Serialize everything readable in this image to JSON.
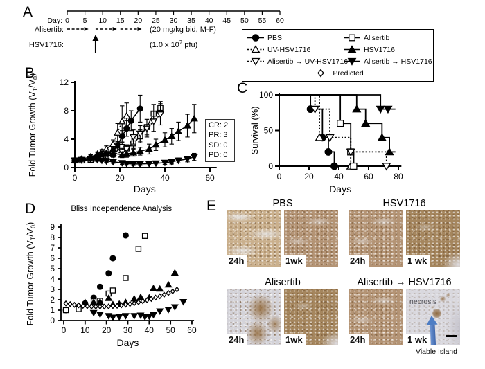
{
  "panels": {
    "A": "A",
    "B": "B",
    "C": "C",
    "D": "D",
    "E": "E"
  },
  "colors": {
    "black": "#000000",
    "stain_brown": "#a5865e",
    "pale_tissue": "#d9d8de",
    "arrow_blue": "#4d7dc4"
  },
  "timeline": {
    "day_prefix": "Day:",
    "tick_days": [
      0,
      5,
      10,
      15,
      20,
      25,
      30,
      35,
      40,
      45,
      50,
      55,
      60
    ],
    "day_min": 0,
    "day_max": 60,
    "alisertib_label": "Alisertib:",
    "alisertib_note": "(20 mg/kg bid, M-F)",
    "alisertib_courses": [
      [
        0,
        6
      ],
      [
        8,
        14
      ],
      [
        15,
        21
      ]
    ],
    "hsv_label": "HSV1716:",
    "hsv_note": "(1.0 x 10^7^ pfu)",
    "hsv_day": 8
  },
  "legend": {
    "items": [
      {
        "label": "PBS",
        "marker": "circle-filled",
        "line": "solid"
      },
      {
        "label": "Alisertib",
        "marker": "square-open",
        "line": "solid"
      },
      {
        "label": "UV-HSV1716",
        "marker": "tri-up-open",
        "line": "dotted"
      },
      {
        "label": "HSV1716",
        "marker": "tri-up-filled",
        "line": "solid"
      },
      {
        "label": "Alisertib → UV-HSV1716",
        "marker": "tri-down-open",
        "line": "dotted"
      },
      {
        "label": "Alisertib → HSV1716",
        "marker": "tri-down-filled",
        "line": "solid"
      },
      {
        "label": "Predicted",
        "marker": "diamond-open",
        "line": "none"
      }
    ]
  },
  "response_box": {
    "lines": [
      "CR: 2",
      "PR: 3",
      "SD: 0",
      "PD: 0"
    ]
  },
  "chart_data": [
    {
      "panel": "B",
      "type": "line",
      "xlabel": "Days",
      "ylabel": "Fold Tumor Growth (V_T_/V_0_)",
      "xlim": [
        0,
        62
      ],
      "ylim": [
        0,
        12
      ],
      "xticks": [
        0,
        20,
        40,
        60
      ],
      "yticks": [
        0,
        4,
        8,
        12
      ],
      "series": [
        {
          "name": "PBS",
          "marker": "circle-filled",
          "line": "solid",
          "x": [
            0,
            3,
            7,
            10,
            12,
            14,
            17,
            19,
            21,
            23,
            25,
            29
          ],
          "y": [
            1,
            1.1,
            1.3,
            1.5,
            1.7,
            1.9,
            2.3,
            3.1,
            4.4,
            5.5,
            6.6,
            8.3
          ],
          "err": [
            0.1,
            0.15,
            0.2,
            0.25,
            0.3,
            0.35,
            0.5,
            0.6,
            0.8,
            1.1,
            1.4,
            1.9
          ]
        },
        {
          "name": "UV-HSV1716",
          "marker": "tri-up-open",
          "line": "dotted",
          "x": [
            0,
            3,
            7,
            10,
            12,
            14,
            17,
            19,
            21,
            23
          ],
          "y": [
            1,
            1.15,
            1.5,
            1.9,
            2.2,
            2.6,
            3.3,
            4.9,
            6.5,
            7.3
          ],
          "err": [
            0.1,
            0.15,
            0.25,
            0.3,
            0.35,
            0.45,
            0.6,
            1.3,
            2.2,
            1.8
          ]
        },
        {
          "name": "Alisertib",
          "marker": "square-open",
          "line": "solid",
          "x": [
            0,
            3,
            7,
            10,
            12,
            14,
            17,
            21,
            23,
            26,
            29,
            32,
            35,
            38
          ],
          "y": [
            1,
            1.0,
            1.1,
            1.25,
            1.4,
            1.55,
            1.9,
            2.9,
            2.7,
            3.4,
            4.4,
            5.7,
            7.6,
            8.4
          ],
          "err": [
            0.08,
            0.1,
            0.15,
            0.2,
            0.25,
            0.3,
            0.4,
            0.6,
            0.5,
            0.7,
            0.9,
            1.1,
            1.3,
            0.9
          ]
        },
        {
          "name": "Alisertib → UV-HSV1716",
          "marker": "tri-down-open",
          "line": "dotted",
          "x": [
            0,
            3,
            7,
            10,
            12,
            14,
            17,
            21,
            23,
            26,
            29,
            32,
            35,
            38
          ],
          "y": [
            1,
            1.05,
            1.2,
            1.35,
            1.5,
            1.65,
            1.85,
            2.2,
            2.6,
            4.3,
            4.8,
            5.5,
            6.5,
            7.5
          ],
          "err": [
            0.08,
            0.1,
            0.15,
            0.2,
            0.25,
            0.3,
            0.4,
            0.5,
            0.6,
            1.0,
            1.1,
            1.2,
            1.4,
            1.5
          ]
        },
        {
          "name": "HSV1716",
          "marker": "tri-up-filled",
          "line": "solid",
          "x": [
            0,
            3,
            7,
            10,
            12,
            14,
            17,
            21,
            23,
            26,
            29,
            33,
            36,
            40,
            43,
            46,
            50,
            53
          ],
          "y": [
            1,
            1.2,
            1.5,
            1.8,
            1.9,
            2.0,
            2.0,
            1.8,
            1.9,
            2.1,
            2.3,
            2.6,
            3.2,
            3.9,
            4.4,
            5.1,
            5.9,
            6.9
          ],
          "err": [
            0.1,
            0.2,
            0.3,
            0.35,
            0.4,
            0.45,
            0.5,
            0.4,
            0.45,
            0.5,
            0.55,
            0.7,
            0.8,
            1.0,
            1.1,
            1.3,
            1.6,
            2.0
          ]
        },
        {
          "name": "Alisertib → HSV1716",
          "marker": "tri-down-filled",
          "line": "solid",
          "x": [
            0,
            3,
            7,
            10,
            12,
            14,
            17,
            21,
            23,
            26,
            29,
            33,
            36,
            40,
            43,
            46,
            50,
            53
          ],
          "y": [
            1,
            1.1,
            1.2,
            1.1,
            1.0,
            0.9,
            0.8,
            0.65,
            0.55,
            0.5,
            0.5,
            0.55,
            0.6,
            0.7,
            0.8,
            1.0,
            1.2,
            1.5
          ],
          "err": [
            0.08,
            0.1,
            0.15,
            0.15,
            0.15,
            0.15,
            0.2,
            0.2,
            0.2,
            0.2,
            0.2,
            0.2,
            0.25,
            0.25,
            0.3,
            0.35,
            0.4,
            0.5
          ]
        }
      ]
    },
    {
      "panel": "C",
      "type": "km",
      "xlabel": "Days",
      "ylabel": "Survival (%)",
      "xlim": [
        0,
        82
      ],
      "ylim": [
        0,
        100
      ],
      "xticks": [
        0,
        20,
        40,
        60,
        80
      ],
      "yticks": [
        0,
        50,
        100
      ],
      "series": [
        {
          "name": "PBS",
          "marker": "circle-filled",
          "line": "solid",
          "steps": [
            [
              21,
              80
            ],
            [
              29,
              40
            ],
            [
              33,
              20
            ],
            [
              37,
              0
            ]
          ]
        },
        {
          "name": "UV-HSV1716",
          "marker": "tri-up-open",
          "line": "dotted",
          "steps": [
            [
              27,
              40
            ],
            [
              48,
              0
            ]
          ]
        },
        {
          "name": "Alisertib",
          "marker": "square-open",
          "line": "solid",
          "steps": [
            [
              41,
              60
            ],
            [
              48,
              20
            ],
            [
              50,
              0
            ]
          ]
        },
        {
          "name": "Alisertib → UV-HSV1716",
          "marker": "tri-down-open",
          "line": "dotted",
          "steps": [
            [
              24,
              80
            ],
            [
              34,
              40
            ],
            [
              48,
              20
            ],
            [
              72,
              0
            ]
          ]
        },
        {
          "name": "HSV1716",
          "marker": "tri-up-filled",
          "line": "solid",
          "steps": [
            [
              52,
              80
            ],
            [
              58,
              60
            ],
            [
              69,
              40
            ],
            [
              74,
              20
            ]
          ],
          "end": 78
        },
        {
          "name": "Alisertib → HSV1716",
          "marker": "tri-down-filled",
          "line": "solid",
          "steps": [
            [
              68,
              80
            ]
          ],
          "censored": [
            [
              73,
              80
            ]
          ],
          "end": 78
        }
      ]
    },
    {
      "panel": "D",
      "type": "scatter",
      "title": "Bliss Independence Analysis",
      "xlabel": "Days",
      "ylabel": "Fold Tumor Growth (V_T_/V_0_)",
      "xlim": [
        0,
        62
      ],
      "ylim": [
        0,
        9.3
      ],
      "xticks": [
        0,
        10,
        20,
        30,
        40,
        50,
        60
      ],
      "yticks": [
        0,
        1,
        2,
        3,
        4,
        5,
        6,
        7,
        8,
        9
      ],
      "series": [
        {
          "name": "PBS",
          "marker": "circle-filled",
          "x": [
            1,
            7,
            10,
            14,
            17,
            21,
            23,
            29
          ],
          "y": [
            1.0,
            1.35,
            1.65,
            2.2,
            3.25,
            4.55,
            6.0,
            8.2
          ]
        },
        {
          "name": "Alisertib",
          "marker": "square-open",
          "x": [
            1,
            7,
            14,
            17,
            21,
            23,
            29,
            35,
            38
          ],
          "y": [
            1.0,
            1.1,
            1.85,
            1.9,
            2.6,
            2.9,
            4.1,
            6.9,
            8.15
          ]
        },
        {
          "name": "HSV1716",
          "marker": "tri-up-filled",
          "x": [
            10,
            14,
            17,
            21,
            23,
            26,
            29,
            33,
            36,
            40,
            42,
            45,
            49,
            52
          ],
          "y": [
            1.75,
            1.75,
            1.8,
            2.15,
            1.55,
            1.6,
            1.75,
            2.1,
            2.25,
            2.2,
            3.1,
            3.05,
            3.45,
            4.6
          ]
        },
        {
          "name": "Alisertib → HSV1716",
          "marker": "tri-down-filled",
          "x": [
            14,
            17,
            21,
            23,
            26,
            29,
            33,
            36,
            38,
            40,
            42,
            45,
            49,
            52,
            56
          ],
          "y": [
            0.75,
            0.6,
            0.45,
            0.3,
            0.35,
            0.45,
            0.45,
            0.5,
            0.35,
            0.4,
            0.55,
            0.9,
            1.05,
            1.3,
            1.8
          ]
        },
        {
          "name": "Predicted",
          "marker": "diamond-open",
          "x": [
            1,
            3,
            5,
            7,
            9,
            11,
            13,
            15,
            17,
            19,
            21,
            23,
            25,
            27,
            29,
            31,
            33,
            35,
            37,
            39,
            41,
            43,
            45,
            47,
            49,
            51,
            53
          ],
          "y": [
            1.65,
            1.58,
            1.51,
            1.46,
            1.41,
            1.38,
            1.35,
            1.34,
            1.34,
            1.34,
            1.36,
            1.39,
            1.42,
            1.47,
            1.53,
            1.59,
            1.67,
            1.76,
            1.86,
            1.96,
            2.08,
            2.21,
            2.34,
            2.49,
            2.65,
            2.81,
            2.99
          ]
        }
      ]
    }
  ],
  "histology": {
    "groups": [
      {
        "title": "PBS",
        "images": [
          {
            "time": "24h",
            "variant": "light"
          },
          {
            "time": "1wk",
            "variant": "medium"
          }
        ]
      },
      {
        "title": "HSV1716",
        "images": [
          {
            "time": "24h",
            "variant": "medium"
          },
          {
            "time": "1 wk",
            "variant": "dark"
          }
        ]
      },
      {
        "title": "Alisertib",
        "images": [
          {
            "time": "24h",
            "variant": "patchy"
          },
          {
            "time": "1wk",
            "variant": "dark"
          }
        ]
      },
      {
        "title": "Alisertib → HSV1716",
        "images": [
          {
            "time": "24h",
            "variant": "medium"
          },
          {
            "time": "1 wk",
            "variant": "pale",
            "labels": {
              "necrosis": "necrosis",
              "viable_island": "Viable Island"
            },
            "scale_bar": true,
            "arrow": true
          }
        ]
      }
    ]
  }
}
